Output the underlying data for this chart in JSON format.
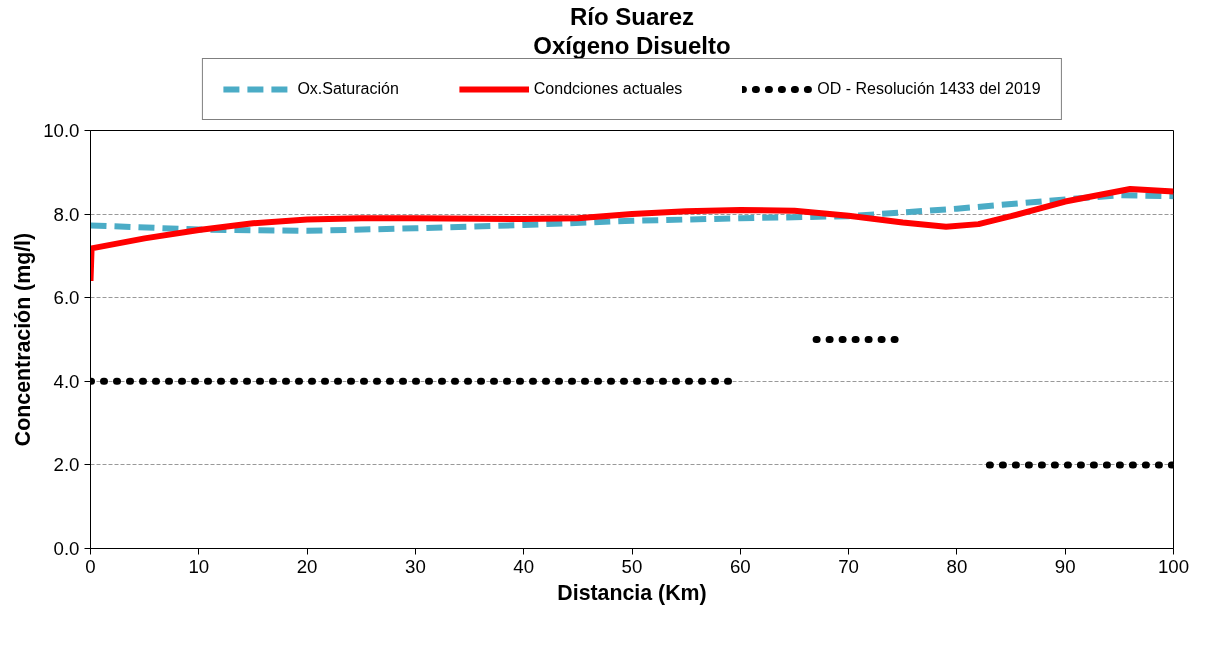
{
  "chart_data": {
    "type": "line",
    "title": "Río Suarez",
    "subtitle": "Oxígeno Disuelto",
    "xlabel": "Distancia (Km)",
    "ylabel": "Concentración (mg/l)",
    "xlim": [
      0,
      100
    ],
    "xticks": [
      0,
      10,
      20,
      30,
      40,
      50,
      60,
      70,
      80,
      90,
      100
    ],
    "ylim": [
      0,
      10
    ],
    "yticks": [
      {
        "value": 0,
        "label": "0.0"
      },
      {
        "value": 2,
        "label": "2.0"
      },
      {
        "value": 4,
        "label": "4.0"
      },
      {
        "value": 6,
        "label": "6.0"
      },
      {
        "value": 8,
        "label": "8.0"
      },
      {
        "value": 10,
        "label": "10.0"
      }
    ],
    "grid": "y",
    "legend": "top",
    "marker": "none",
    "series": [
      {
        "name": "Ox.Saturación",
        "color": "#4bacc6",
        "line_style": "dashed",
        "x": [
          0,
          10,
          20,
          30,
          40,
          50,
          60,
          70,
          80,
          90,
          95,
          100
        ],
        "values": [
          7.73,
          7.63,
          7.6,
          7.66,
          7.74,
          7.84,
          7.9,
          7.95,
          8.13,
          8.35,
          8.45,
          8.43
        ]
      },
      {
        "name": "Condciones actuales",
        "color": "#ff0000",
        "line_style": "solid",
        "x": [
          0,
          0.1,
          5,
          10,
          15,
          20,
          25,
          30,
          40,
          45,
          50,
          55,
          60,
          65,
          70,
          75,
          79,
          82,
          85,
          90,
          96,
          100
        ],
        "values": [
          6.4,
          7.18,
          7.42,
          7.62,
          7.78,
          7.87,
          7.9,
          7.9,
          7.88,
          7.9,
          8.0,
          8.07,
          8.1,
          8.08,
          7.96,
          7.8,
          7.7,
          7.76,
          7.95,
          8.3,
          8.6,
          8.54
        ]
      },
      {
        "name": "OD - Resolución 1433 del 2019",
        "color": "#000000",
        "line_style": "dotted",
        "x": [
          0,
          60,
          63,
          67,
          75,
          79,
          83,
          100
        ],
        "values": [
          4,
          4,
          null,
          5,
          5,
          null,
          2,
          2
        ]
      }
    ]
  }
}
